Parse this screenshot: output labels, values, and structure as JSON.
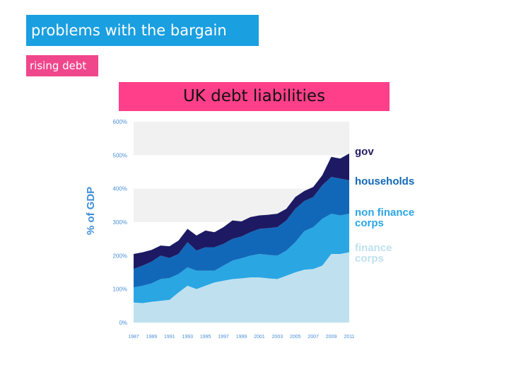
{
  "slide": {
    "title": "problems with the bargain",
    "subtitle": "rising debt",
    "chart_title": "UK debt liabilities"
  },
  "colors": {
    "title_bg": "#1a9fe0",
    "subtitle_bg": "#f0468c",
    "chart_title_bg": "#ff3f8a",
    "gov": "#1d1a63",
    "households": "#1268b8",
    "non_finance_corps": "#2aa6e3",
    "finance_corps": "#bfe1ef",
    "band": "#f1f1f1"
  },
  "chart_data": {
    "type": "area",
    "stacked": true,
    "title": "UK debt liabilities",
    "xlabel": "",
    "ylabel": "% of GDP",
    "ylim": [
      0,
      600
    ],
    "yticks": [
      "0%",
      "100%",
      "200%",
      "300%",
      "400%",
      "500%",
      "600%"
    ],
    "x": [
      1987,
      1988,
      1989,
      1990,
      1991,
      1992,
      1993,
      1994,
      1995,
      1996,
      1997,
      1998,
      1999,
      2000,
      2001,
      2002,
      2003,
      2004,
      2005,
      2006,
      2007,
      2008,
      2009,
      2010,
      2011
    ],
    "xticks": [
      "1987",
      "1989",
      "1991",
      "1993",
      "1995",
      "1997",
      "1999",
      "2001",
      "2003",
      "2005",
      "2007",
      "2009",
      "2011"
    ],
    "series": [
      {
        "name": "finance corps",
        "values": [
          60,
          58,
          62,
          65,
          68,
          90,
          110,
          100,
          110,
          120,
          125,
          130,
          132,
          135,
          135,
          132,
          130,
          140,
          150,
          158,
          160,
          170,
          205,
          205,
          210
        ]
      },
      {
        "name": "non finance corps",
        "values": [
          45,
          52,
          55,
          65,
          65,
          55,
          55,
          55,
          45,
          35,
          45,
          55,
          60,
          65,
          70,
          70,
          70,
          75,
          90,
          115,
          125,
          140,
          120,
          115,
          115
        ]
      },
      {
        "name": "households",
        "values": [
          55,
          60,
          65,
          70,
          60,
          60,
          75,
          60,
          70,
          70,
          65,
          65,
          65,
          70,
          75,
          80,
          85,
          90,
          100,
          90,
          90,
          100,
          110,
          110,
          100
        ]
      },
      {
        "name": "gov",
        "values": [
          45,
          40,
          35,
          30,
          35,
          40,
          40,
          45,
          50,
          45,
          50,
          55,
          45,
          45,
          40,
          40,
          40,
          35,
          35,
          30,
          30,
          30,
          60,
          60,
          80
        ]
      }
    ],
    "legend_position": "right",
    "grid": "alternating horizontal bands"
  }
}
